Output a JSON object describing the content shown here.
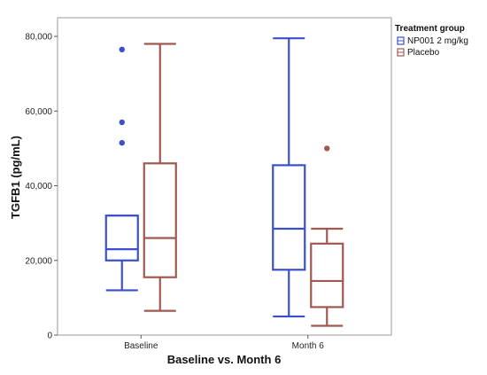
{
  "chart_data": {
    "type": "box",
    "xlabel": "Baseline vs. Month 6",
    "ylabel": "TGFB1 (pg/mL)",
    "categories": [
      "Baseline",
      "Month 6"
    ],
    "ylim": [
      0,
      85000
    ],
    "yticks": [
      0,
      20000,
      40000,
      60000,
      80000
    ],
    "ytick_labels": [
      "0",
      "20,000",
      "40,000",
      "60,000",
      "80,000"
    ],
    "grid": false,
    "legend": {
      "title": "Treatment group",
      "placement": "top-right-outside"
    },
    "series": [
      {
        "name": "NP001 2 mg/kg",
        "color": "#3a4fcc",
        "boxes": [
          {
            "category": "Baseline",
            "min": 12000,
            "q1": 20000,
            "median": 23000,
            "q3": 32000,
            "max": 32000,
            "outliers": [
              51500,
              57000,
              76500
            ]
          },
          {
            "category": "Month 6",
            "min": 5000,
            "q1": 17500,
            "median": 28500,
            "q3": 45500,
            "max": 79500,
            "outliers": []
          }
        ]
      },
      {
        "name": "Placebo",
        "color": "#a0594f",
        "boxes": [
          {
            "category": "Baseline",
            "min": 6500,
            "q1": 15500,
            "median": 26000,
            "q3": 46000,
            "max": 78000,
            "outliers": []
          },
          {
            "category": "Month 6",
            "min": 2500,
            "q1": 7500,
            "median": 14500,
            "q3": 24500,
            "max": 28500,
            "outliers": [
              50000
            ]
          }
        ]
      }
    ]
  }
}
